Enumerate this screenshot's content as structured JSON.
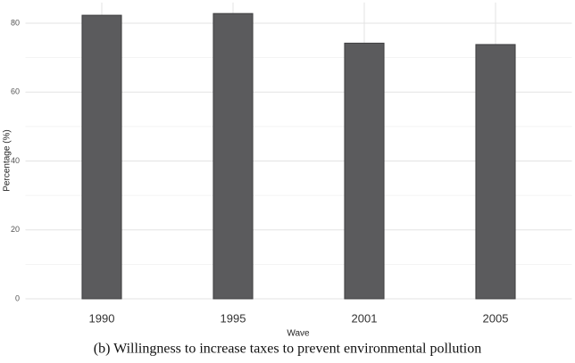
{
  "chart_data": {
    "type": "bar",
    "caption": "(b) Willingness to increase taxes to prevent environmental pollution",
    "x_label": "Wave",
    "y_label": "Percentage (%)",
    "categories": [
      "1990",
      "1995",
      "2001",
      "2005"
    ],
    "values": [
      82.3,
      82.8,
      74.2,
      73.8
    ],
    "color": "#5b5b5d",
    "ylim": [
      0,
      86
    ],
    "yticks": [
      0,
      20,
      40,
      60,
      80
    ],
    "minor_yticks": [
      10,
      30,
      50,
      70
    ],
    "grid": true
  }
}
